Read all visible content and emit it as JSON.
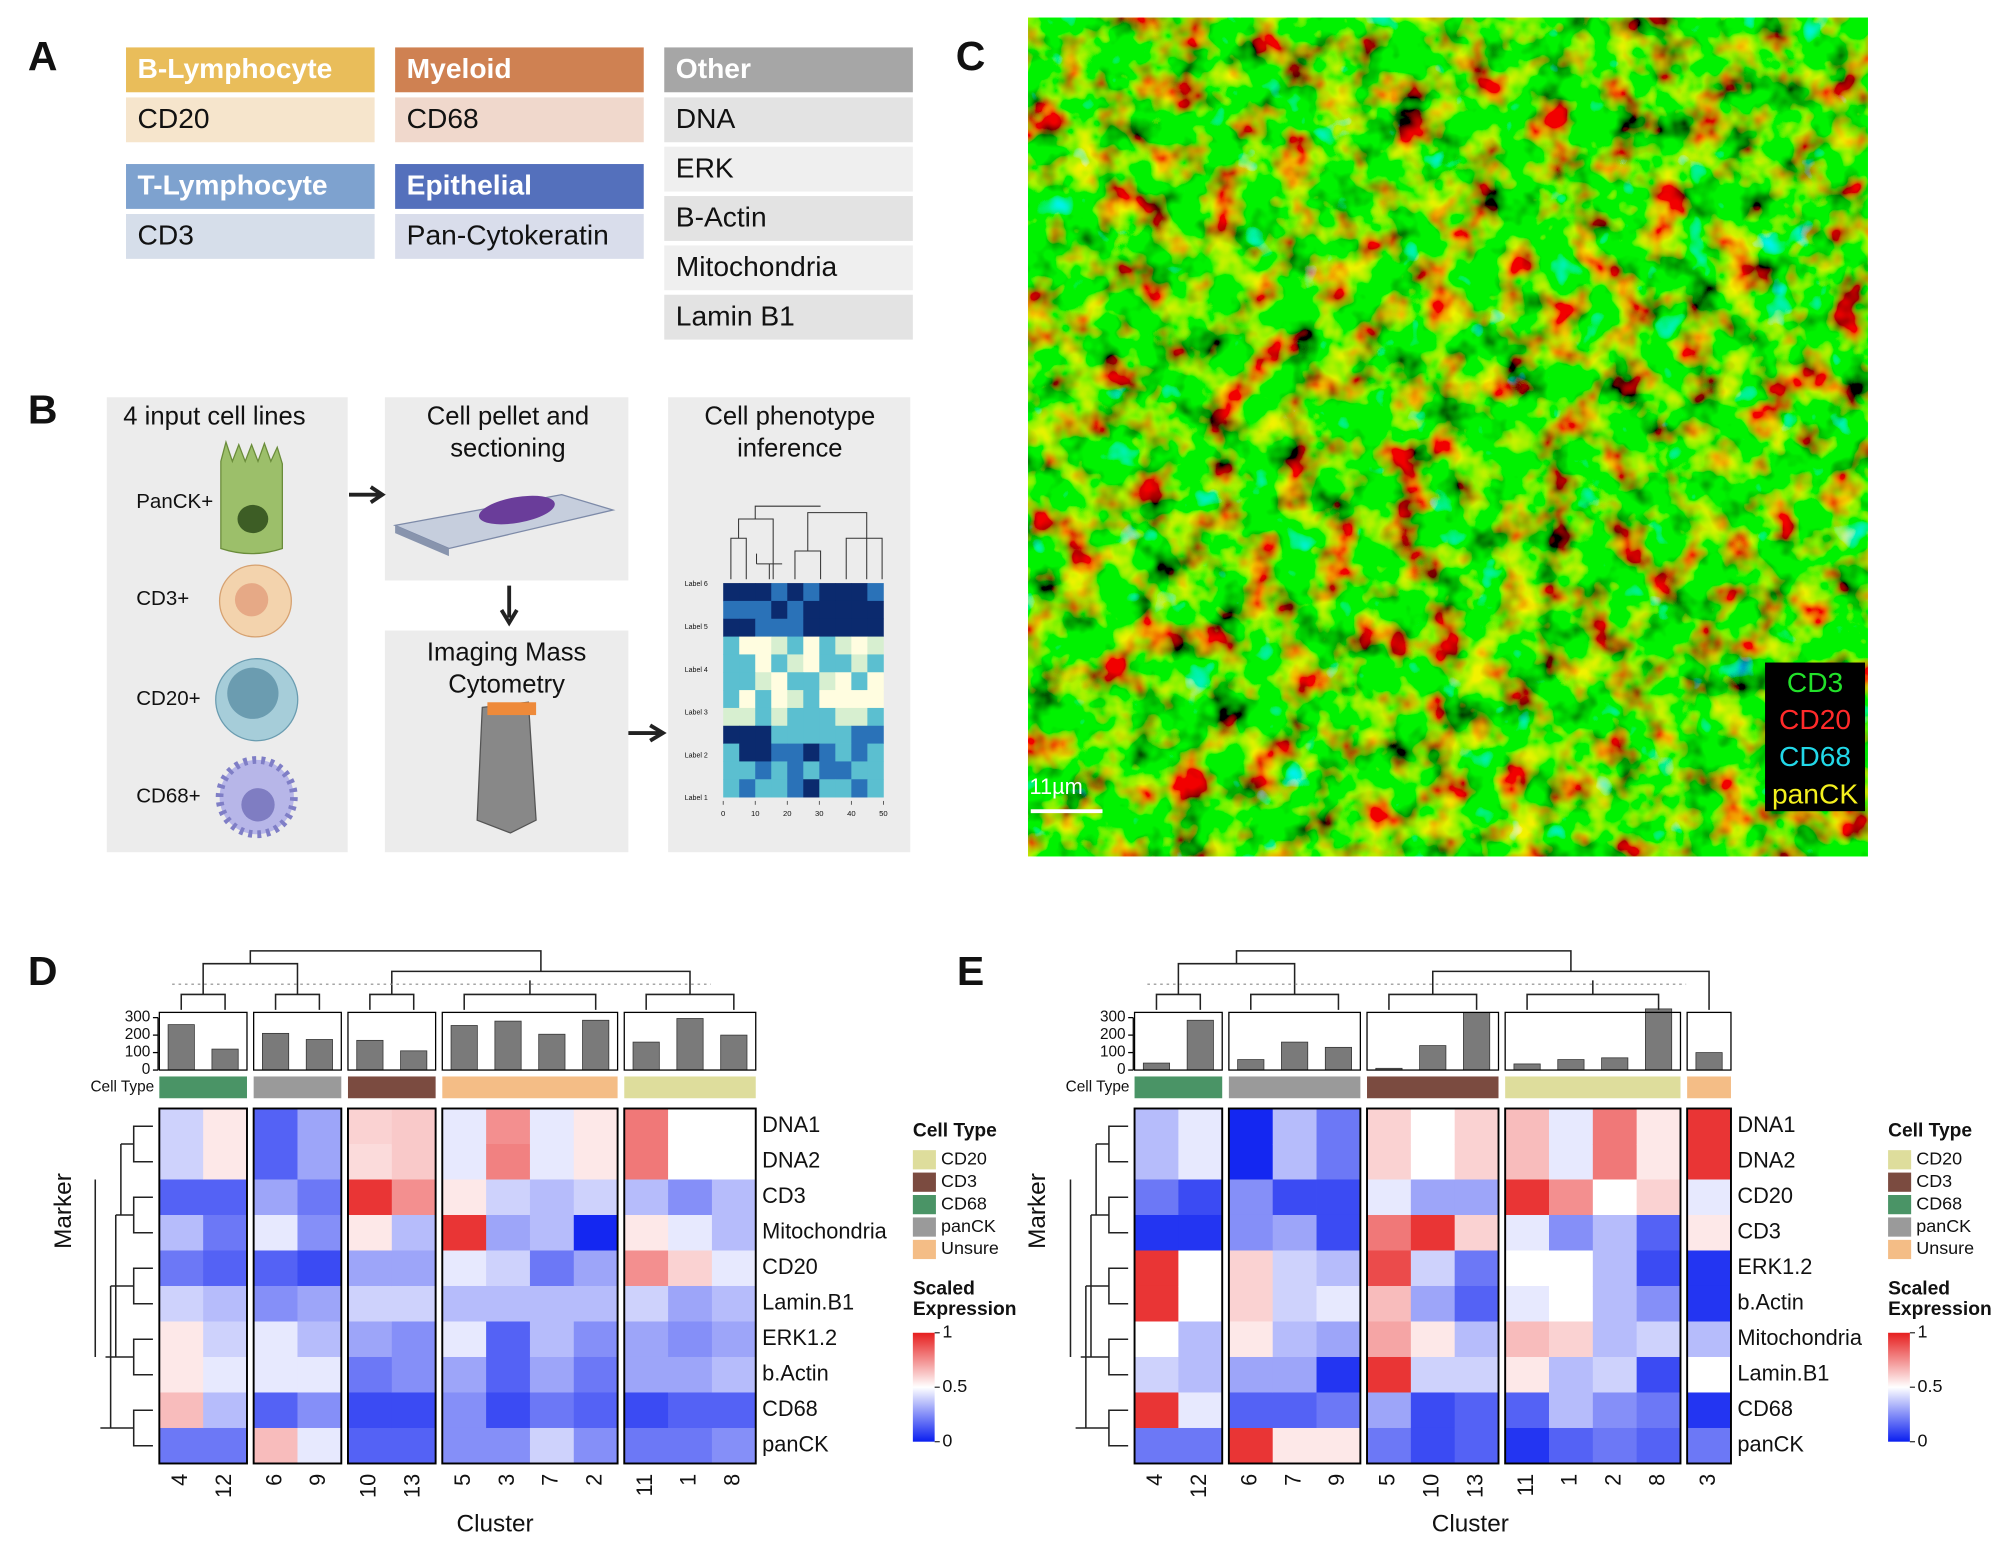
{
  "panel_labels": [
    "A",
    "B",
    "C",
    "D",
    "E"
  ],
  "panel_a": {
    "groups": [
      {
        "title": "B-Lymphocyte",
        "color": "#e9bd5a",
        "row_color": "#f6e5cc",
        "markers": [
          "CD20"
        ]
      },
      {
        "title": "Myeloid",
        "color": "#cf8152",
        "row_color": "#f0d8cc",
        "markers": [
          "CD68"
        ]
      },
      {
        "title": "T-Lymphocyte",
        "color": "#7ea2cf",
        "row_color": "#d6deea",
        "markers": [
          "CD3"
        ]
      },
      {
        "title": "Epithelial",
        "color": "#5470bc",
        "row_color": "#d9ddeb",
        "markers": [
          "Pan-Cytokeratin"
        ]
      },
      {
        "title": "Other",
        "color": "#a6a6a6",
        "row_color": "#e6e6e6",
        "markers": [
          "DNA",
          "ERK",
          "B-Actin",
          "Mitochondria",
          "Lamin B1"
        ]
      }
    ]
  },
  "panel_b": {
    "input_title": "4 input cell lines",
    "cell_lines": [
      "PanCK+",
      "CD3+",
      "CD20+",
      "CD68+"
    ],
    "step2": [
      "Cell pellet and",
      "sectioning"
    ],
    "step3": [
      "Imaging Mass",
      "Cytometry"
    ],
    "step4": [
      "Cell phenotype",
      "inference"
    ],
    "mini_labels": [
      "Label 6",
      "Label 5",
      "Label 4",
      "Label 3",
      "Label 2",
      "Label 1"
    ],
    "mini_ticks": [
      0,
      10,
      20,
      30,
      40,
      50
    ]
  },
  "panel_c": {
    "legend": [
      {
        "name": "CD3",
        "color": "#22e02a"
      },
      {
        "name": "CD20",
        "color": "#ff2a2a"
      },
      {
        "name": "CD68",
        "color": "#22d8e8"
      },
      {
        "name": "panCK",
        "color": "#f4f01e"
      }
    ],
    "scale_label": "11µm"
  },
  "heatmap_d": {
    "strip_label": "Cell Type",
    "x_label": "Cluster",
    "y_label": "Marker",
    "legend_title": "Cell Type",
    "scale_title": [
      "Scaled",
      "Expression"
    ],
    "cell_types": [
      {
        "name": "CD20",
        "color": "#dedd9c"
      },
      {
        "name": "CD3",
        "color": "#7b4b40"
      },
      {
        "name": "CD68",
        "color": "#4a9466"
      },
      {
        "name": "panCK",
        "color": "#9a9a9a"
      },
      {
        "name": "Unsure",
        "color": "#f4bd86"
      }
    ],
    "scale_lim": [
      0,
      1
    ],
    "scale_ticks": [
      0,
      0.5,
      1
    ],
    "count_lim": [
      0,
      330
    ],
    "count_ticks": [
      0,
      100,
      200,
      300
    ],
    "groups": [
      {
        "cell_type": "CD68",
        "clusters": [
          4,
          12
        ],
        "counts": [
          260,
          120
        ]
      },
      {
        "cell_type": "panCK",
        "clusters": [
          6,
          9
        ],
        "counts": [
          210,
          175
        ]
      },
      {
        "cell_type": "CD3",
        "clusters": [
          10,
          13
        ],
        "counts": [
          170,
          110
        ]
      },
      {
        "cell_type": "Unsure",
        "clusters": [
          5,
          3,
          7,
          2
        ],
        "counts": [
          255,
          280,
          205,
          285
        ]
      },
      {
        "cell_type": "CD20",
        "clusters": [
          11,
          1,
          8
        ],
        "counts": [
          160,
          295,
          200
        ]
      }
    ],
    "markers": [
      "DNA1",
      "DNA2",
      "CD3",
      "Mitochondria",
      "CD20",
      "Lamin.B1",
      "ERK1.2",
      "b.Actin",
      "CD68",
      "panCK"
    ],
    "values": [
      [
        0.4,
        0.55,
        0.15,
        0.3,
        0.6,
        0.62,
        0.45,
        0.75,
        0.45,
        0.55,
        0.8,
        0.5,
        0.5
      ],
      [
        0.4,
        0.55,
        0.15,
        0.3,
        0.58,
        0.62,
        0.45,
        0.78,
        0.45,
        0.55,
        0.8,
        0.5,
        0.5
      ],
      [
        0.15,
        0.15,
        0.3,
        0.2,
        0.95,
        0.75,
        0.55,
        0.4,
        0.35,
        0.4,
        0.35,
        0.25,
        0.35
      ],
      [
        0.35,
        0.2,
        0.45,
        0.25,
        0.55,
        0.35,
        0.95,
        0.3,
        0.35,
        0.02,
        0.55,
        0.45,
        0.35
      ],
      [
        0.2,
        0.15,
        0.15,
        0.1,
        0.3,
        0.3,
        0.45,
        0.4,
        0.2,
        0.3,
        0.75,
        0.6,
        0.45
      ],
      [
        0.4,
        0.35,
        0.25,
        0.3,
        0.4,
        0.4,
        0.35,
        0.35,
        0.35,
        0.35,
        0.4,
        0.3,
        0.35
      ],
      [
        0.55,
        0.4,
        0.45,
        0.35,
        0.3,
        0.25,
        0.45,
        0.15,
        0.35,
        0.25,
        0.3,
        0.25,
        0.3
      ],
      [
        0.55,
        0.45,
        0.45,
        0.45,
        0.2,
        0.25,
        0.3,
        0.15,
        0.3,
        0.2,
        0.3,
        0.3,
        0.35
      ],
      [
        0.65,
        0.35,
        0.15,
        0.25,
        0.1,
        0.1,
        0.25,
        0.1,
        0.2,
        0.15,
        0.1,
        0.15,
        0.15
      ],
      [
        0.2,
        0.2,
        0.65,
        0.45,
        0.15,
        0.15,
        0.25,
        0.25,
        0.4,
        0.25,
        0.2,
        0.2,
        0.25
      ]
    ]
  },
  "heatmap_e": {
    "strip_label": "Cell Type",
    "x_label": "Cluster",
    "y_label": "Marker",
    "legend_title": "Cell Type",
    "scale_title": [
      "Scaled",
      "Expression"
    ],
    "cell_types": [
      {
        "name": "CD20",
        "color": "#dedd9c"
      },
      {
        "name": "CD3",
        "color": "#7b4b40"
      },
      {
        "name": "CD68",
        "color": "#4a9466"
      },
      {
        "name": "panCK",
        "color": "#9a9a9a"
      },
      {
        "name": "Unsure",
        "color": "#f4bd86"
      }
    ],
    "scale_lim": [
      0,
      1
    ],
    "scale_ticks": [
      0,
      0.5,
      1
    ],
    "count_lim": [
      0,
      330
    ],
    "count_ticks": [
      0,
      100,
      200,
      300
    ],
    "groups": [
      {
        "cell_type": "CD68",
        "clusters": [
          4,
          12
        ],
        "counts": [
          40,
          285
        ]
      },
      {
        "cell_type": "panCK",
        "clusters": [
          6,
          7,
          9
        ],
        "counts": [
          60,
          160,
          130
        ]
      },
      {
        "cell_type": "CD3",
        "clusters": [
          5,
          10,
          13
        ],
        "counts": [
          10,
          140,
          330
        ]
      },
      {
        "cell_type": "CD20",
        "clusters": [
          11,
          1,
          2,
          8
        ],
        "counts": [
          35,
          60,
          70,
          350
        ]
      },
      {
        "cell_type": "Unsure",
        "clusters": [
          3
        ],
        "counts": [
          100
        ]
      }
    ],
    "markers": [
      "DNA1",
      "DNA2",
      "CD20",
      "CD3",
      "ERK1.2",
      "b.Actin",
      "Mitochondria",
      "Lamin.B1",
      "CD68",
      "panCK"
    ],
    "values": [
      [
        0.35,
        0.45,
        0.02,
        0.35,
        0.2,
        0.6,
        0.5,
        0.6,
        0.65,
        0.45,
        0.8,
        0.55,
        0.95
      ],
      [
        0.35,
        0.45,
        0.02,
        0.35,
        0.2,
        0.6,
        0.5,
        0.6,
        0.65,
        0.45,
        0.8,
        0.55,
        0.95
      ],
      [
        0.2,
        0.1,
        0.25,
        0.1,
        0.1,
        0.45,
        0.3,
        0.3,
        0.95,
        0.75,
        0.5,
        0.6,
        0.45
      ],
      [
        0.05,
        0.05,
        0.25,
        0.3,
        0.1,
        0.8,
        0.95,
        0.6,
        0.45,
        0.25,
        0.35,
        0.15,
        0.55
      ],
      [
        0.95,
        0.5,
        0.6,
        0.4,
        0.35,
        0.9,
        0.4,
        0.2,
        0.5,
        0.5,
        0.35,
        0.1,
        0.05
      ],
      [
        0.95,
        0.5,
        0.6,
        0.4,
        0.45,
        0.65,
        0.3,
        0.15,
        0.45,
        0.5,
        0.35,
        0.25,
        0.05
      ],
      [
        0.5,
        0.35,
        0.55,
        0.35,
        0.3,
        0.7,
        0.55,
        0.35,
        0.65,
        0.6,
        0.35,
        0.4,
        0.35
      ],
      [
        0.4,
        0.35,
        0.3,
        0.3,
        0.05,
        0.95,
        0.4,
        0.4,
        0.55,
        0.35,
        0.4,
        0.1,
        0.5
      ],
      [
        0.95,
        0.45,
        0.15,
        0.15,
        0.2,
        0.3,
        0.1,
        0.15,
        0.15,
        0.35,
        0.25,
        0.2,
        0.05
      ],
      [
        0.2,
        0.2,
        0.95,
        0.55,
        0.55,
        0.2,
        0.1,
        0.15,
        0.05,
        0.15,
        0.2,
        0.15,
        0.2
      ]
    ]
  }
}
